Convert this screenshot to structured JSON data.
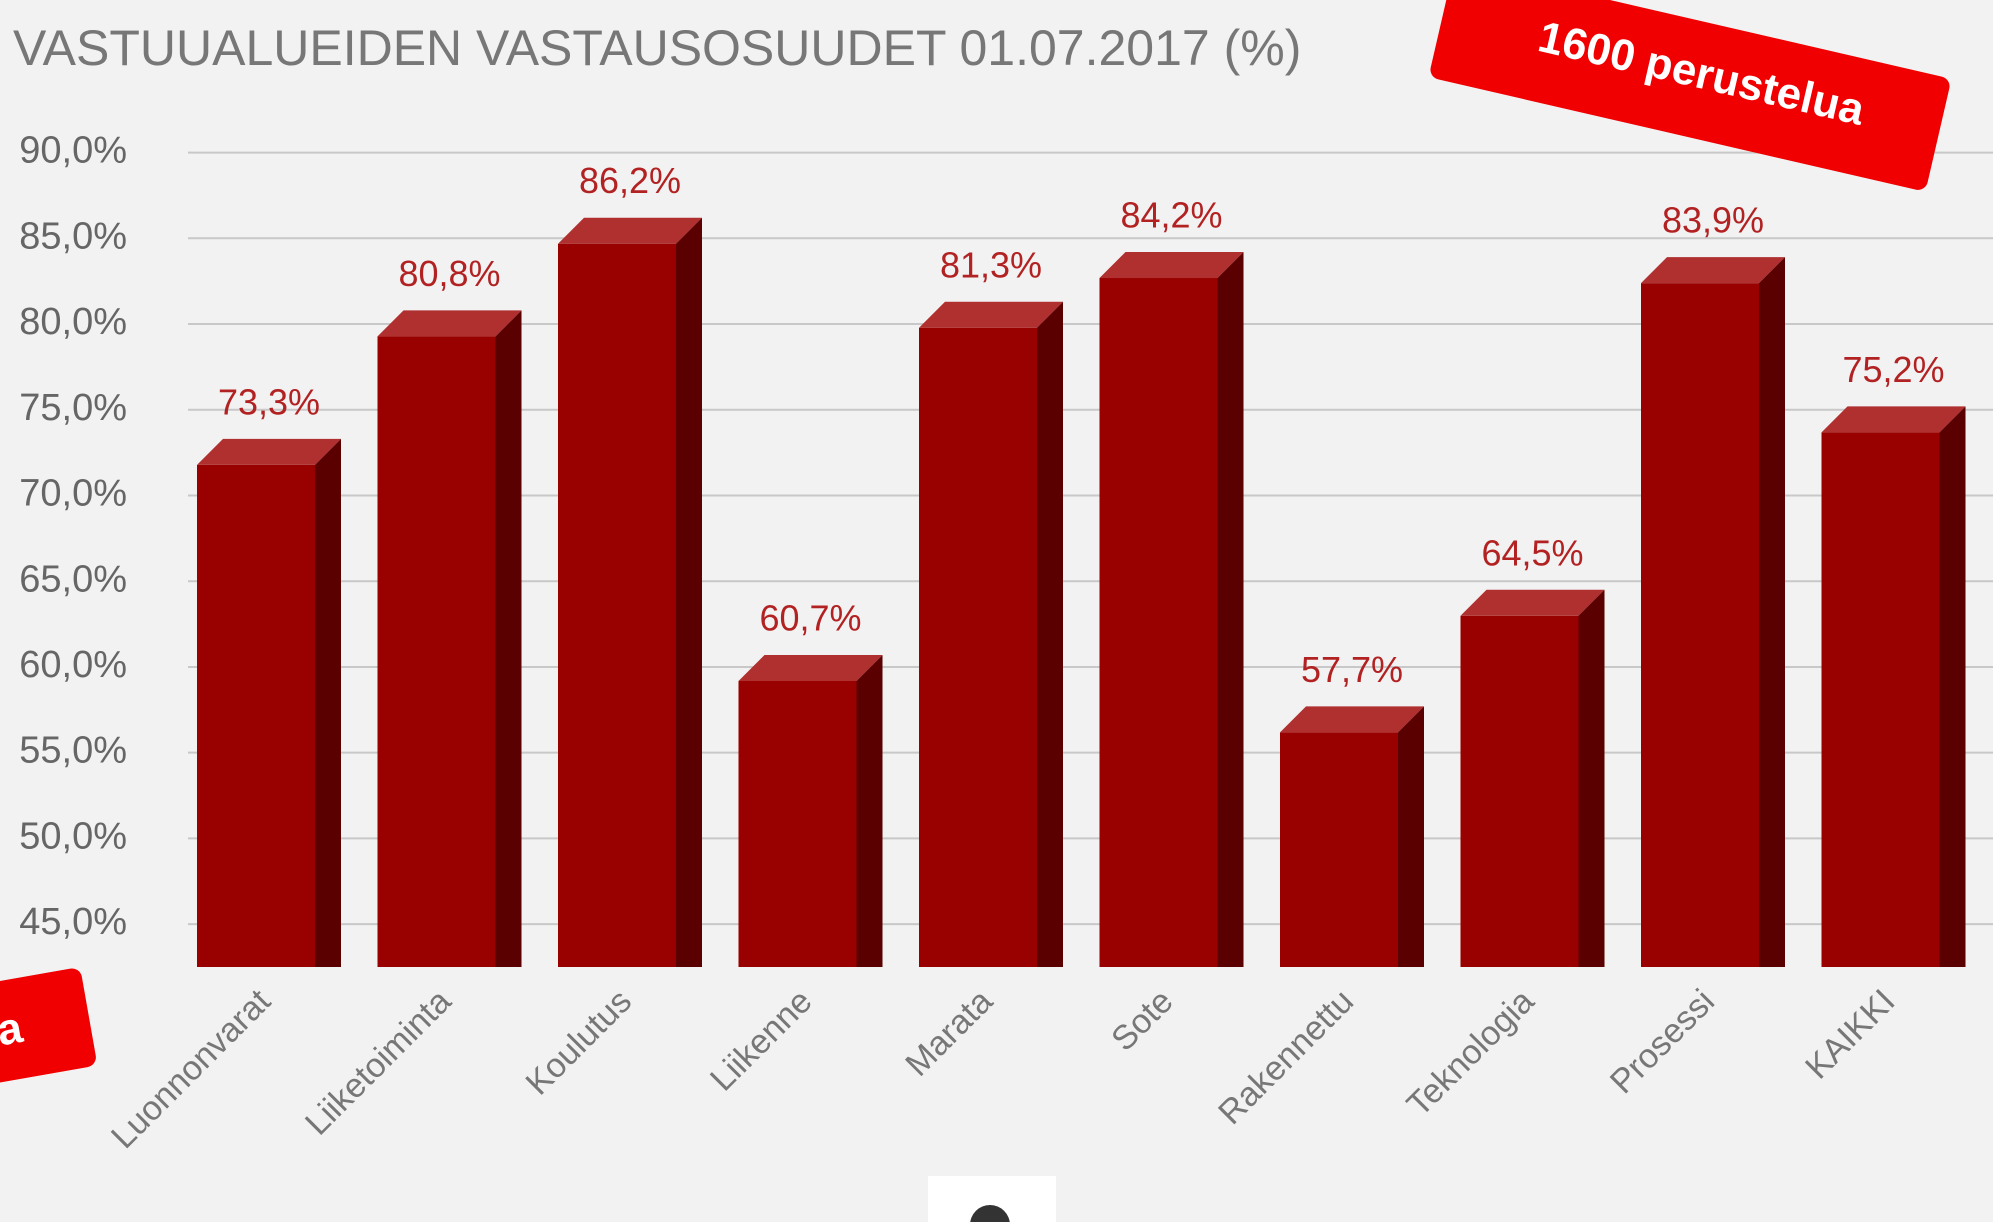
{
  "chart_data": {
    "type": "bar3d",
    "title": "VASTUUALUEIDEN VASTAUSOSUUDET 01.07.2017 (%)",
    "categories": [
      "Luonnonvarat",
      "Liiketoiminta",
      "Koulutus",
      "Liikenne",
      "Marata",
      "Sote",
      "Rakennettu",
      "Teknologia",
      "Prosessi",
      "KAIKKI"
    ],
    "values": [
      73.3,
      80.8,
      86.2,
      60.7,
      81.3,
      84.2,
      57.7,
      64.5,
      83.9,
      75.2
    ],
    "value_labels": [
      "73,3%",
      "80,8%",
      "86,2%",
      "60,7%",
      "81,3%",
      "84,2%",
      "57,7%",
      "64,5%",
      "83,9%",
      "75,2%"
    ],
    "color": "#990000",
    "ylim": [
      42.5,
      90.5
    ],
    "yticks": [
      {
        "value": 45,
        "label": "45,0%"
      },
      {
        "value": 50,
        "label": "50,0%"
      },
      {
        "value": 55,
        "label": "55,0%"
      },
      {
        "value": 60,
        "label": "60,0%"
      },
      {
        "value": 65,
        "label": "65,0%"
      },
      {
        "value": 70,
        "label": "70,0%"
      },
      {
        "value": 75,
        "label": "75,0%"
      },
      {
        "value": 80,
        "label": "80,0%"
      },
      {
        "value": 85,
        "label": "85,0%"
      },
      {
        "value": 90,
        "label": "90,0%"
      }
    ],
    "grid": true,
    "annotations": [
      "1600 perustelua",
      "na"
    ]
  }
}
